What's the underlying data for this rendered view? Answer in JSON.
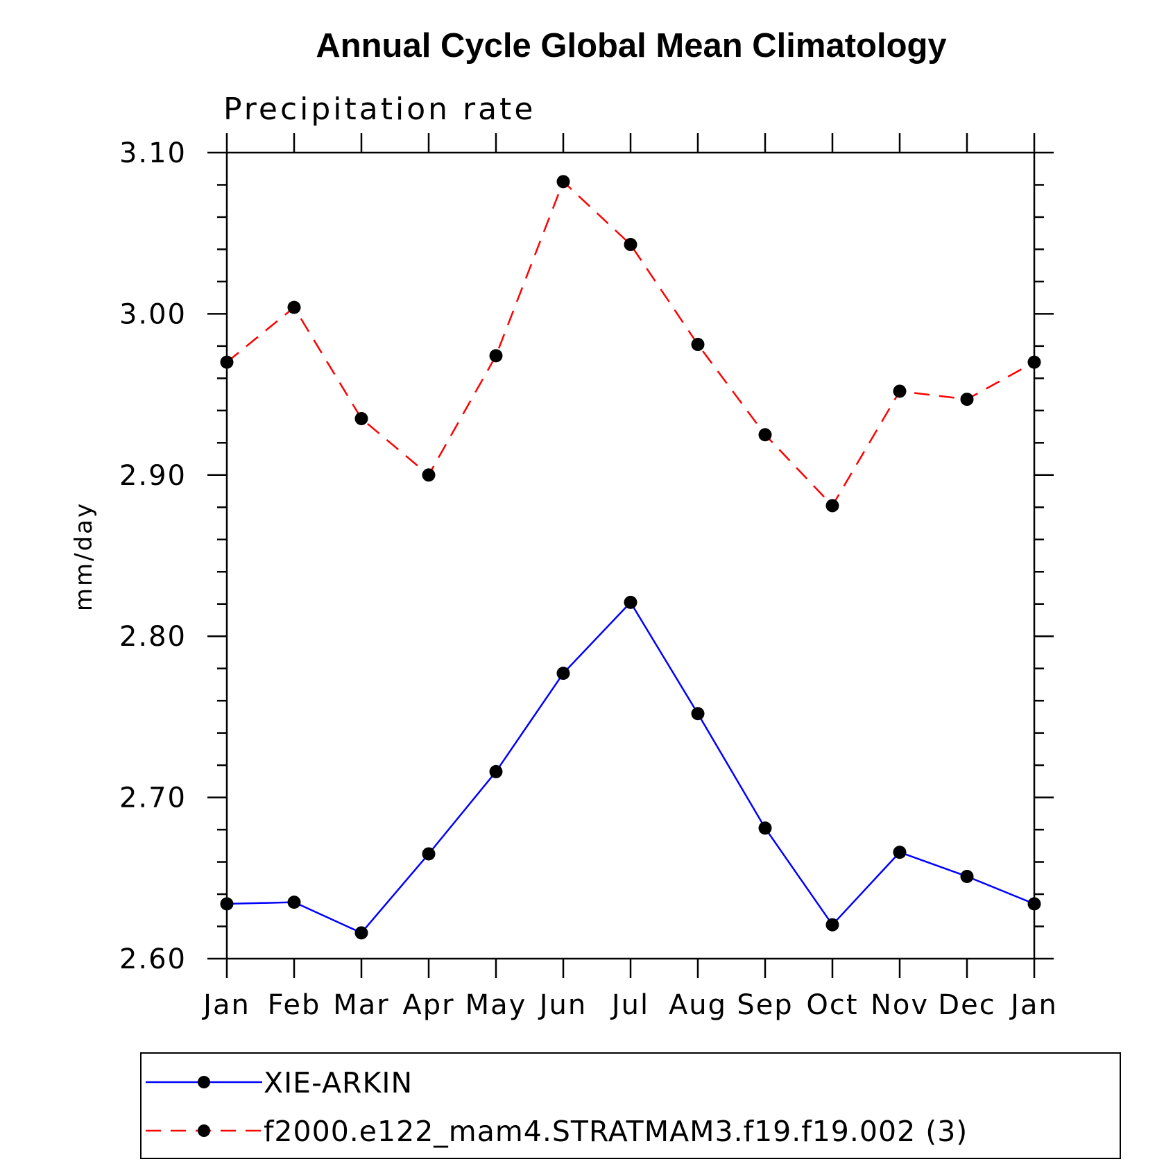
{
  "chart_data": {
    "type": "line",
    "title": "Annual Cycle Global Mean Climatology",
    "subtitle": "Precipitation rate",
    "xlabel": "",
    "ylabel": "mm/day",
    "categories": [
      "Jan",
      "Feb",
      "Mar",
      "Apr",
      "May",
      "Jun",
      "Jul",
      "Aug",
      "Sep",
      "Oct",
      "Nov",
      "Dec",
      "Jan"
    ],
    "yticks": [
      "2.60",
      "2.70",
      "2.80",
      "2.90",
      "3.00",
      "3.10"
    ],
    "ylim": [
      2.6,
      3.1
    ],
    "grid": false,
    "legend_placement": "bottom",
    "series": [
      {
        "name": "XIE-ARKIN",
        "color": "#0000ff",
        "dash": "solid",
        "marker": "filled-circle",
        "values": [
          2.634,
          2.635,
          2.616,
          2.665,
          2.716,
          2.777,
          2.821,
          2.752,
          2.681,
          2.621,
          2.666,
          2.651,
          2.634
        ]
      },
      {
        "name": "f2000.e122_mam4.STRATMAM3.f19.f19.002 (3)",
        "color": "#ff0000",
        "dash": "dashed",
        "marker": "filled-circle",
        "values": [
          2.97,
          3.004,
          2.935,
          2.9,
          2.974,
          3.082,
          3.043,
          2.981,
          2.925,
          2.881,
          2.952,
          2.947,
          2.97
        ]
      }
    ]
  }
}
